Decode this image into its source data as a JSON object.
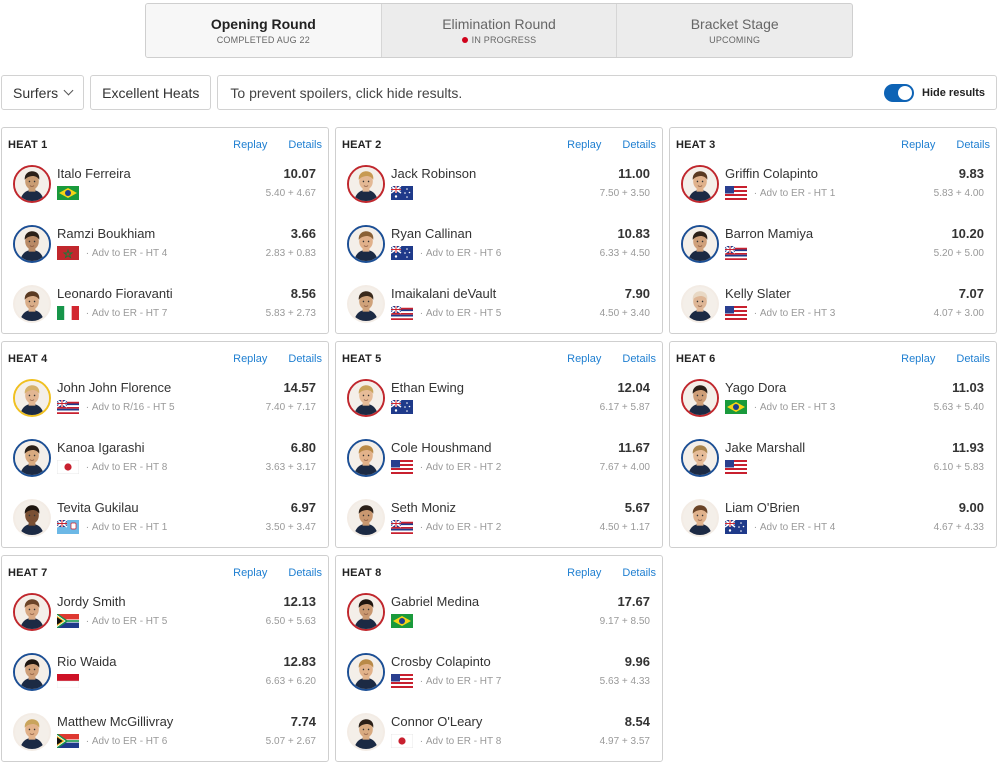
{
  "rounds": [
    {
      "name": "Opening Round",
      "status": "COMPLETED AUG 22",
      "active": true,
      "live": false
    },
    {
      "name": "Elimination Round",
      "status": "IN PROGRESS",
      "active": false,
      "live": true
    },
    {
      "name": "Bracket Stage",
      "status": "UPCOMING",
      "active": false,
      "live": false
    }
  ],
  "toolbar": {
    "surfers_label": "Surfers",
    "excellent_label": "Excellent Heats",
    "spoiler_text": "To prevent spoilers, click hide results.",
    "hide_label": "Hide results",
    "hide_on": true
  },
  "links": {
    "replay": "Replay",
    "details": "Details"
  },
  "colors": {
    "accent": "#1f7fd1",
    "toggle": "#0e63b5",
    "live": "#d0021b",
    "winner_ring": "#f0c020",
    "ring_red": "#c0272d",
    "ring_blue": "#1c4f95"
  },
  "heats": [
    {
      "title": "HEAT 1",
      "athletes": [
        {
          "name": "Italo Ferreira",
          "flag": "BR",
          "adv": "",
          "score": "10.07",
          "waves": "5.40 + 4.67",
          "ring": "red",
          "skin": "#c99c73",
          "hair": "#2b2018"
        },
        {
          "name": "Ramzi Boukhiam",
          "flag": "MA",
          "adv": "Adv to ER - HT 4",
          "score": "3.66",
          "waves": "2.83 + 0.83",
          "ring": "blue",
          "skin": "#b98a66",
          "hair": "#2b2018"
        },
        {
          "name": "Leonardo Fioravanti",
          "flag": "IT",
          "adv": "Adv to ER - HT 7",
          "score": "8.56",
          "waves": "5.83 + 2.73",
          "ring": "none",
          "skin": "#d9ad88",
          "hair": "#5a3a22"
        }
      ]
    },
    {
      "title": "HEAT 2",
      "athletes": [
        {
          "name": "Jack Robinson",
          "flag": "AU",
          "adv": "",
          "score": "11.00",
          "waves": "7.50 + 3.50",
          "ring": "red",
          "skin": "#e3b894",
          "hair": "#c79a52"
        },
        {
          "name": "Ryan Callinan",
          "flag": "AU",
          "adv": "Adv to ER - HT 6",
          "score": "10.83",
          "waves": "6.33 + 4.50",
          "ring": "blue",
          "skin": "#e0b08a",
          "hair": "#8a6136"
        },
        {
          "name": "Imaikalani deVault",
          "flag": "HI",
          "adv": "Adv to ER - HT 5",
          "score": "7.90",
          "waves": "4.50 + 3.40",
          "ring": "none",
          "skin": "#cfa27a",
          "hair": "#3a2a1c"
        }
      ]
    },
    {
      "title": "HEAT 3",
      "athletes": [
        {
          "name": "Griffin Colapinto",
          "flag": "US",
          "adv": "Adv to ER - HT 1",
          "score": "9.83",
          "waves": "5.83 + 4.00",
          "ring": "red",
          "skin": "#e0b28c",
          "hair": "#5a3a22"
        },
        {
          "name": "Barron Mamiya",
          "flag": "HI",
          "adv": "",
          "score": "10.20",
          "waves": "5.20 + 5.00",
          "ring": "blue",
          "skin": "#cfa07a",
          "hair": "#2b2018"
        },
        {
          "name": "Kelly Slater",
          "flag": "US",
          "adv": "Adv to ER - HT 3",
          "score": "7.07",
          "waves": "4.07 + 3.00",
          "ring": "none",
          "skin": "#deb696",
          "hair": "#e8d8c4"
        }
      ]
    },
    {
      "title": "HEAT 4",
      "athletes": [
        {
          "name": "John John Florence",
          "flag": "HI",
          "adv": "Adv to R/16 - HT 5",
          "score": "14.57",
          "waves": "7.40 + 7.17",
          "ring": "gold",
          "skin": "#e2b692",
          "hair": "#d6b16a"
        },
        {
          "name": "Kanoa Igarashi",
          "flag": "JP",
          "adv": "Adv to ER - HT 8",
          "score": "6.80",
          "waves": "3.63 + 3.17",
          "ring": "blue",
          "skin": "#d8aa80",
          "hair": "#2b2018"
        },
        {
          "name": "Tevita Gukilau",
          "flag": "FJ",
          "adv": "Adv to ER - HT 1",
          "score": "6.97",
          "waves": "3.50 + 3.47",
          "ring": "none",
          "skin": "#7a5034",
          "hair": "#1e1610"
        }
      ]
    },
    {
      "title": "HEAT 5",
      "athletes": [
        {
          "name": "Ethan Ewing",
          "flag": "AU",
          "adv": "",
          "score": "12.04",
          "waves": "6.17 + 5.87",
          "ring": "red",
          "skin": "#e6bc98",
          "hair": "#c9a45c"
        },
        {
          "name": "Cole Houshmand",
          "flag": "US",
          "adv": "Adv to ER - HT 2",
          "score": "11.67",
          "waves": "7.67 + 4.00",
          "ring": "blue",
          "skin": "#e2b28a",
          "hair": "#b98a48"
        },
        {
          "name": "Seth Moniz",
          "flag": "HI",
          "adv": "Adv to ER - HT 2",
          "score": "5.67",
          "waves": "4.50 + 1.17",
          "ring": "none",
          "skin": "#c99870",
          "hair": "#2b2018"
        }
      ]
    },
    {
      "title": "HEAT 6",
      "athletes": [
        {
          "name": "Yago Dora",
          "flag": "BR",
          "adv": "Adv to ER - HT 3",
          "score": "11.03",
          "waves": "5.63 + 5.40",
          "ring": "red",
          "skin": "#cf9f78",
          "hair": "#2b2018"
        },
        {
          "name": "Jake Marshall",
          "flag": "US",
          "adv": "",
          "score": "11.93",
          "waves": "6.10 + 5.83",
          "ring": "blue",
          "skin": "#e6bc98",
          "hair": "#a8834c"
        },
        {
          "name": "Liam O'Brien",
          "flag": "AU",
          "adv": "Adv to ER - HT 4",
          "score": "9.00",
          "waves": "4.67 + 4.33",
          "ring": "none",
          "skin": "#e0b28c",
          "hair": "#6a4428"
        }
      ]
    },
    {
      "title": "HEAT 7",
      "athletes": [
        {
          "name": "Jordy Smith",
          "flag": "ZA",
          "adv": "Adv to ER - HT 5",
          "score": "12.13",
          "waves": "6.50 + 5.63",
          "ring": "red",
          "skin": "#d8a882",
          "hair": "#6a4428"
        },
        {
          "name": "Rio Waida",
          "flag": "ID",
          "adv": "",
          "score": "12.83",
          "waves": "6.63 + 6.20",
          "ring": "blue",
          "skin": "#cf9f78",
          "hair": "#1e1610"
        },
        {
          "name": "Matthew McGillivray",
          "flag": "ZA",
          "adv": "Adv to ER - HT 6",
          "score": "7.74",
          "waves": "5.07 + 2.67",
          "ring": "none",
          "skin": "#e2b28a",
          "hair": "#c9a45c"
        }
      ]
    },
    {
      "title": "HEAT 8",
      "athletes": [
        {
          "name": "Gabriel Medina",
          "flag": "BR",
          "adv": "",
          "score": "17.67",
          "waves": "9.17 + 8.50",
          "ring": "red",
          "skin": "#c99870",
          "hair": "#1e1610"
        },
        {
          "name": "Crosby Colapinto",
          "flag": "US",
          "adv": "Adv to ER - HT 7",
          "score": "9.96",
          "waves": "5.63 + 4.33",
          "ring": "blue",
          "skin": "#e2b28a",
          "hair": "#b98a48"
        },
        {
          "name": "Connor O'Leary",
          "flag": "JP",
          "adv": "Adv to ER - HT 8",
          "score": "8.54",
          "waves": "4.97 + 3.57",
          "ring": "none",
          "skin": "#d8aa80",
          "hair": "#2b2018"
        }
      ]
    }
  ]
}
